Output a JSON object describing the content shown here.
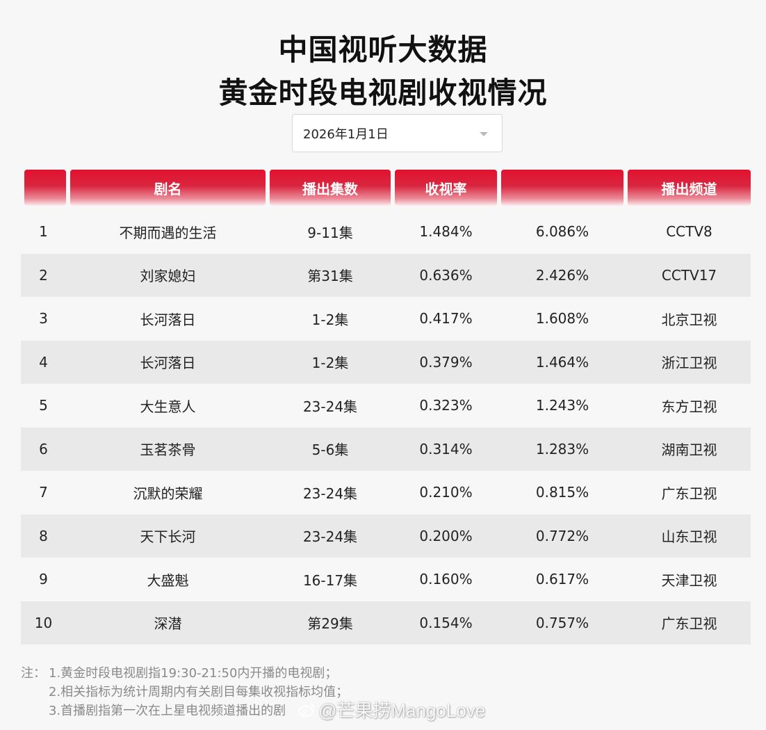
{
  "title_line1": "中国视听大数据",
  "title_line2": "黄金时段电视剧收视情况",
  "date_select": {
    "value": "2026年1月1日"
  },
  "columns": [
    "",
    "剧名",
    "播出集数",
    "收视率",
    "",
    "播出频道"
  ],
  "rows": [
    [
      "1",
      "不期而遇的生活",
      "9-11集",
      "1.484%",
      "6.086%",
      "CCTV8"
    ],
    [
      "2",
      "刘家媳妇",
      "第31集",
      "0.636%",
      "2.426%",
      "CCTV17"
    ],
    [
      "3",
      "长河落日",
      "1-2集",
      "0.417%",
      "1.608%",
      "北京卫视"
    ],
    [
      "4",
      "长河落日",
      "1-2集",
      "0.379%",
      "1.464%",
      "浙江卫视"
    ],
    [
      "5",
      "大生意人",
      "23-24集",
      "0.323%",
      "1.243%",
      "东方卫视"
    ],
    [
      "6",
      "玉茗茶骨",
      "5-6集",
      "0.314%",
      "1.283%",
      "湖南卫视"
    ],
    [
      "7",
      "沉默的荣耀",
      "23-24集",
      "0.210%",
      "0.815%",
      "广东卫视"
    ],
    [
      "8",
      "天下长河",
      "23-24集",
      "0.200%",
      "0.772%",
      "山东卫视"
    ],
    [
      "9",
      "大盛魁",
      "16-17集",
      "0.160%",
      "0.617%",
      "天津卫视"
    ],
    [
      "10",
      "深潜",
      "第29集",
      "0.154%",
      "0.757%",
      "广东卫视"
    ]
  ],
  "notes": {
    "prefix": "注：",
    "lines": [
      "1.黄金时段电视剧指19:30-21:50内开播的电视剧；",
      "2.相关指标为统计周期内有关剧目每集收视指标均值；",
      "3.首播剧指第一次在上星电视频道播出的剧"
    ]
  },
  "watermark": "@芒果捞MangoLove",
  "colors": {
    "header_red": "#e2112f",
    "alt_row": "#e9e9e9",
    "background": "#f7f7f7"
  }
}
